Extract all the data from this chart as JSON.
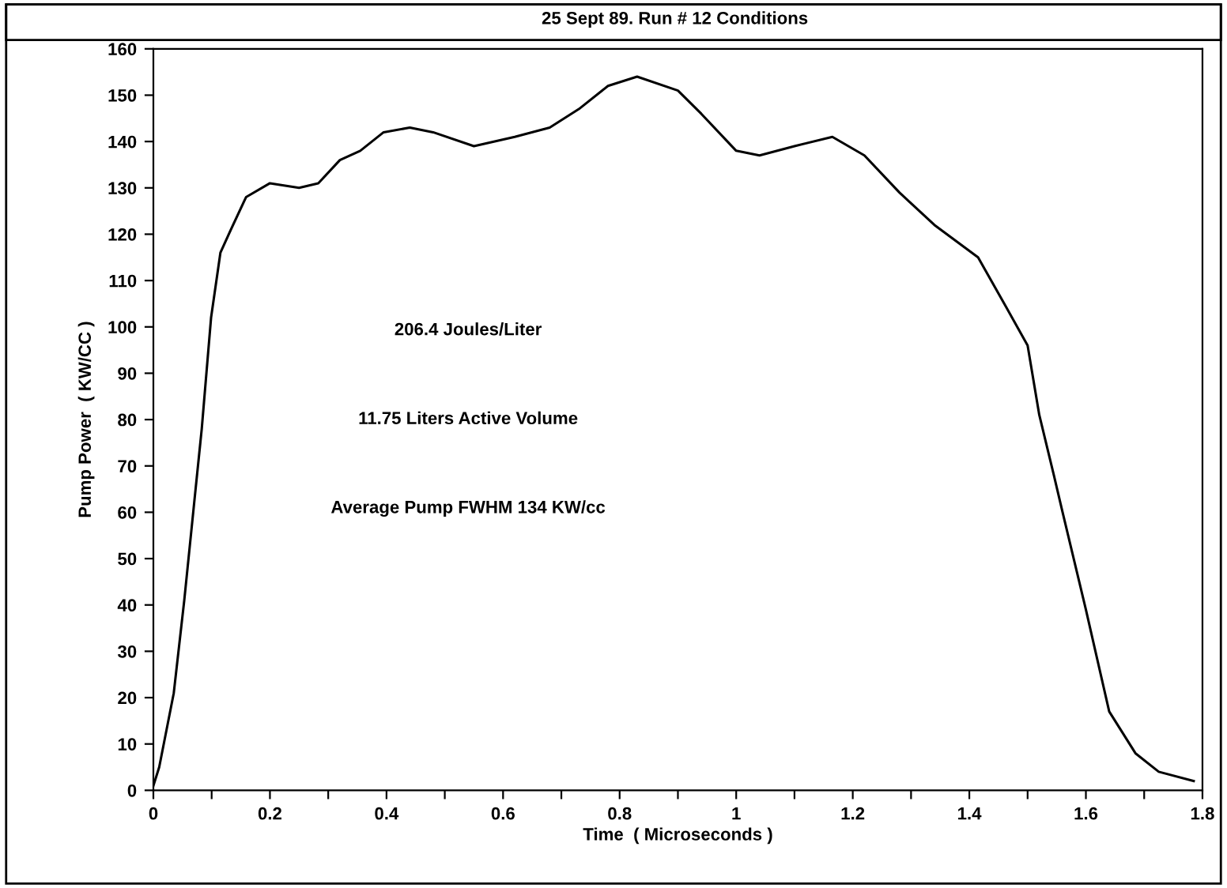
{
  "chart_data": {
    "type": "line",
    "title": "25 Sept 89. Run # 12 Conditions",
    "xlabel": "Time  ( Microseconds )",
    "ylabel": "Pump Power  ( KW/CC )",
    "annotations": [
      "206.4 Joules/Liter",
      "11.75 Liters Active Volume",
      "Average Pump FWHM 134 KW/cc"
    ],
    "series": [
      {
        "color": "#000000",
        "x": [
          0,
          0.01,
          0.035,
          0.053,
          0.07,
          0.083,
          0.099,
          0.115,
          0.133,
          0.159,
          0.2,
          0.25,
          0.283,
          0.32,
          0.355,
          0.395,
          0.44,
          0.48,
          0.55,
          0.62,
          0.68,
          0.73,
          0.78,
          0.83,
          0.9,
          0.94,
          1.0,
          1.04,
          1.1,
          1.165,
          1.22,
          1.28,
          1.34,
          1.415,
          1.46,
          1.5,
          1.52,
          1.545,
          1.56,
          1.6,
          1.64,
          1.685,
          1.725,
          1.785
        ],
        "values": [
          1,
          5,
          21,
          41,
          62,
          78,
          102,
          116,
          121,
          128,
          131,
          130,
          131,
          136,
          138,
          142,
          143,
          142,
          139,
          141,
          143,
          147,
          152,
          154,
          151,
          146,
          138,
          137,
          139,
          141,
          137,
          129,
          122,
          115,
          105,
          96,
          81,
          68,
          60,
          39,
          17,
          8,
          4,
          2
        ]
      }
    ],
    "xlim": [
      0,
      1.8
    ],
    "ylim": [
      0,
      160
    ],
    "xticks": [
      0,
      {
        "value": 0.1,
        "label": null
      },
      0.2,
      {
        "value": 0.3,
        "label": null
      },
      0.4,
      {
        "value": 0.5,
        "label": null
      },
      0.6,
      {
        "value": 0.7,
        "label": null
      },
      0.8,
      {
        "value": 0.9,
        "label": null
      },
      1,
      {
        "value": 1.1,
        "label": null
      },
      1.2,
      {
        "value": 1.3,
        "label": null
      },
      1.4,
      {
        "value": 1.5,
        "label": null
      },
      1.6,
      {
        "value": 1.7,
        "label": null
      },
      1.8
    ],
    "yticks": [
      0,
      10,
      20,
      30,
      40,
      50,
      60,
      70,
      80,
      90,
      100,
      110,
      120,
      130,
      140,
      150,
      160
    ],
    "grid": false,
    "legend": false,
    "marker": "none",
    "line_style": "solid"
  }
}
